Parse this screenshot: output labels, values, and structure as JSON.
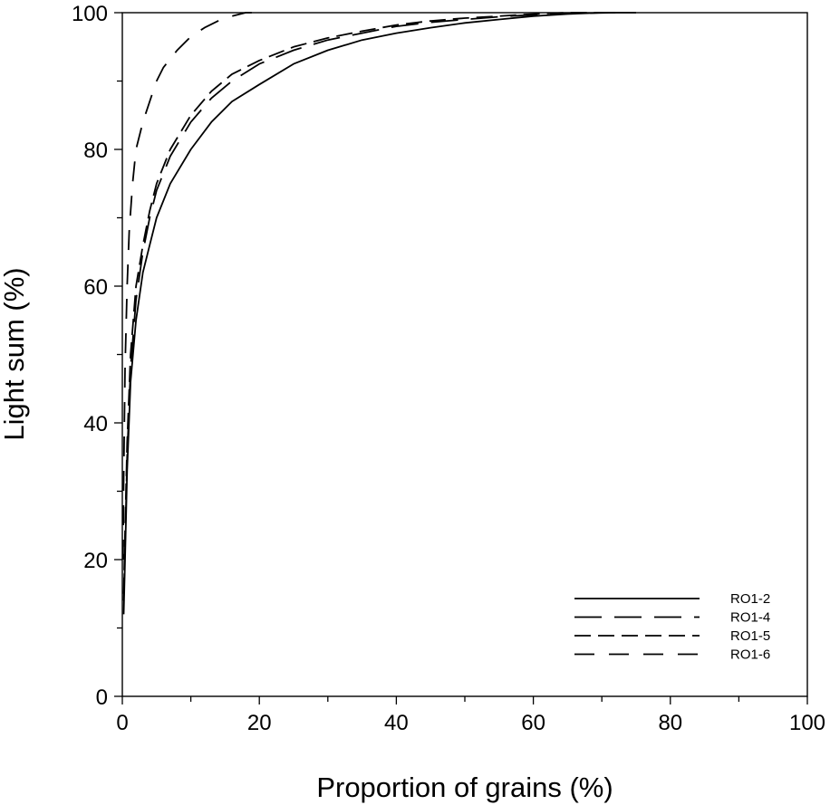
{
  "chart_data": {
    "type": "line",
    "xlabel": "Proportion of grains (%)",
    "ylabel": "Light sum (%)",
    "xlim": [
      0,
      100
    ],
    "ylim": [
      0,
      100
    ],
    "x_ticks": [
      "0",
      "20",
      "40",
      "60",
      "80",
      "100"
    ],
    "y_ticks": [
      "0",
      "20",
      "40",
      "60",
      "80",
      "100"
    ],
    "grid": false,
    "legend": "bottom-right",
    "series": [
      {
        "name": "RO1-2",
        "dash": "solid",
        "points": [
          [
            0.2,
            12
          ],
          [
            0.4,
            20
          ],
          [
            0.7,
            33
          ],
          [
            1.2,
            46
          ],
          [
            2,
            55
          ],
          [
            3,
            62
          ],
          [
            4,
            66
          ],
          [
            5,
            70
          ],
          [
            7,
            75
          ],
          [
            10,
            80
          ],
          [
            13,
            84
          ],
          [
            16,
            87
          ],
          [
            20,
            89.5
          ],
          [
            25,
            92.5
          ],
          [
            30,
            94.5
          ],
          [
            35,
            96
          ],
          [
            40,
            97
          ],
          [
            45,
            97.8
          ],
          [
            50,
            98.5
          ],
          [
            55,
            99
          ],
          [
            60,
            99.5
          ],
          [
            65,
            99.8
          ],
          [
            70,
            100
          ],
          [
            75,
            100
          ]
        ]
      },
      {
        "name": "RO1-4",
        "dash": "long",
        "points": [
          [
            0.2,
            14
          ],
          [
            0.4,
            22
          ],
          [
            0.7,
            35
          ],
          [
            1.2,
            48
          ],
          [
            2,
            58
          ],
          [
            3,
            65
          ],
          [
            4,
            70
          ],
          [
            5,
            74
          ],
          [
            7,
            79
          ],
          [
            10,
            84
          ],
          [
            13,
            87.5
          ],
          [
            16,
            90
          ],
          [
            20,
            92.5
          ],
          [
            25,
            94.5
          ],
          [
            30,
            96
          ],
          [
            35,
            97
          ],
          [
            40,
            98
          ],
          [
            45,
            98.6
          ],
          [
            50,
            99
          ],
          [
            55,
            99.4
          ],
          [
            60,
            99.7
          ],
          [
            65,
            99.9
          ],
          [
            72,
            100
          ]
        ]
      },
      {
        "name": "RO1-5",
        "dash": "medium",
        "points": [
          [
            0.2,
            15
          ],
          [
            0.4,
            24
          ],
          [
            0.7,
            37
          ],
          [
            1.2,
            50
          ],
          [
            2,
            60
          ],
          [
            3,
            66
          ],
          [
            4,
            71
          ],
          [
            5,
            75
          ],
          [
            7,
            80
          ],
          [
            10,
            85
          ],
          [
            13,
            88.5
          ],
          [
            16,
            91
          ],
          [
            20,
            93
          ],
          [
            25,
            95
          ],
          [
            30,
            96.3
          ],
          [
            35,
            97.3
          ],
          [
            40,
            98.2
          ],
          [
            45,
            98.8
          ],
          [
            50,
            99.2
          ],
          [
            55,
            99.5
          ],
          [
            60,
            99.8
          ],
          [
            65,
            100
          ],
          [
            70,
            100
          ]
        ]
      },
      {
        "name": "RO1-6",
        "dash": "short",
        "points": [
          [
            0.1,
            20
          ],
          [
            0.2,
            32
          ],
          [
            0.4,
            48
          ],
          [
            0.7,
            60
          ],
          [
            1,
            68
          ],
          [
            1.5,
            75
          ],
          [
            2,
            80
          ],
          [
            3,
            84
          ],
          [
            4,
            87
          ],
          [
            5,
            90
          ],
          [
            6,
            92
          ],
          [
            8,
            94.5
          ],
          [
            10,
            96.5
          ],
          [
            12,
            97.8
          ],
          [
            14,
            98.8
          ],
          [
            16,
            99.5
          ],
          [
            18,
            100
          ],
          [
            20,
            100
          ]
        ]
      }
    ]
  }
}
